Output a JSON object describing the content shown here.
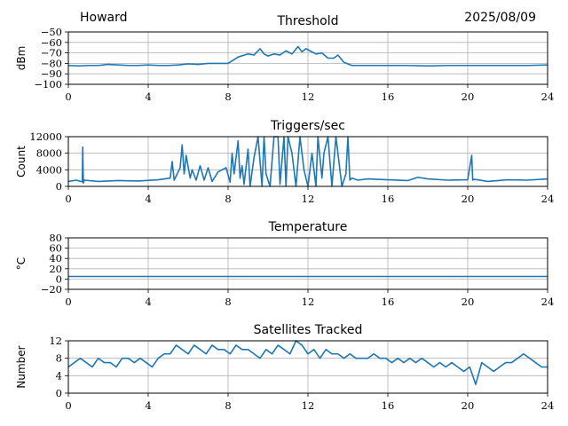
{
  "header": {
    "station": "Howard",
    "date": "2025/08/09"
  },
  "chart_data": [
    {
      "type": "line",
      "title": "Threshold",
      "ylabel": "dBm",
      "xlabel": "",
      "xlim": [
        0,
        24
      ],
      "ylim": [
        -100,
        -50
      ],
      "xticks": [
        0,
        4,
        8,
        12,
        16,
        20,
        24
      ],
      "yticks": [
        -100,
        -90,
        -80,
        -70,
        -60,
        -50
      ],
      "ytick_labels": [
        "−100",
        "−90",
        "−80",
        "−70",
        "−60",
        "−50"
      ],
      "grid": true,
      "color": "#1f77b4",
      "series": [
        {
          "x": [
            0,
            0.5,
            1,
            1.5,
            2,
            2.5,
            3,
            3.5,
            4,
            4.5,
            5,
            5.5,
            6,
            6.5,
            7,
            7.5,
            8,
            8.5,
            9,
            9.3,
            9.6,
            9.8,
            10,
            10.3,
            10.6,
            10.9,
            11.2,
            11.5,
            11.7,
            11.9,
            12.1,
            12.4,
            12.7,
            13,
            13.3,
            13.5,
            13.8,
            14.2,
            15,
            16,
            17,
            18,
            19,
            20,
            21,
            22,
            23,
            24
          ],
          "y": [
            -82,
            -82.5,
            -82,
            -82,
            -81,
            -81.5,
            -82,
            -82,
            -81.5,
            -82,
            -82,
            -81.5,
            -80.5,
            -81,
            -80,
            -80,
            -80,
            -74,
            -71,
            -72,
            -66,
            -71,
            -73,
            -71,
            -72,
            -68,
            -71,
            -64,
            -69,
            -66,
            -68,
            -71,
            -70,
            -75,
            -75,
            -72,
            -79,
            -82,
            -82,
            -82,
            -82,
            -82.5,
            -82,
            -82,
            -82,
            -82,
            -82,
            -81.5
          ]
        }
      ]
    },
    {
      "type": "line",
      "title": "Triggers/sec",
      "ylabel": "Count",
      "xlabel": "",
      "xlim": [
        0,
        24
      ],
      "ylim": [
        0,
        12000
      ],
      "xticks": [
        0,
        4,
        8,
        12,
        16,
        20,
        24
      ],
      "yticks": [
        0,
        4000,
        8000,
        12000
      ],
      "ytick_labels": [
        "0",
        "4000",
        "8000",
        "12000"
      ],
      "grid": true,
      "color": "#1f77b4",
      "series": [
        {
          "x": [
            0,
            0.4,
            0.7,
            0.72,
            0.75,
            0.8,
            1.5,
            2.5,
            3.5,
            4.5,
            5.1,
            5.2,
            5.3,
            5.6,
            5.7,
            5.8,
            5.9,
            6.1,
            6.2,
            6.4,
            6.6,
            6.8,
            7,
            7.2,
            7.5,
            7.9,
            8.1,
            8.2,
            8.3,
            8.5,
            8.6,
            8.7,
            8.8,
            9,
            9.1,
            9.3,
            9.5,
            9.7,
            9.8,
            9.9,
            10.1,
            10.3,
            10.5,
            10.6,
            10.8,
            10.9,
            11,
            11.2,
            11.4,
            11.6,
            11.8,
            12,
            12.2,
            12.4,
            12.5,
            12.7,
            12.8,
            13,
            13.2,
            13.4,
            13.6,
            13.7,
            13.9,
            14,
            14.1,
            14.2,
            14.5,
            15,
            16,
            17,
            17.5,
            18,
            19,
            20,
            20.2,
            20.25,
            20.3,
            20.5,
            21,
            22,
            23,
            24
          ],
          "y": [
            1200,
            1500,
            1100,
            9500,
            800,
            1500,
            1200,
            1400,
            1300,
            1600,
            2000,
            6000,
            1500,
            4500,
            10000,
            3000,
            7500,
            2000,
            4000,
            1500,
            5000,
            1500,
            4500,
            1200,
            3500,
            4500,
            1000,
            8000,
            3000,
            11000,
            2000,
            5000,
            500,
            9000,
            0,
            7000,
            12000,
            0,
            12000,
            3000,
            0,
            12000,
            12000,
            500,
            12000,
            0,
            12000,
            8000,
            0,
            12000,
            4000,
            0,
            8000,
            0,
            12000,
            2000,
            8000,
            12000,
            0,
            12000,
            4000,
            0,
            3000,
            12000,
            1500,
            2000,
            1500,
            1800,
            1600,
            1400,
            2200,
            1800,
            1500,
            1600,
            7500,
            1500,
            1700,
            1600,
            1200,
            1600,
            1500,
            1800
          ]
        }
      ]
    },
    {
      "type": "line",
      "title": "Temperature",
      "ylabel": "°C",
      "xlabel": "",
      "xlim": [
        0,
        24
      ],
      "ylim": [
        -20,
        80
      ],
      "xticks": [
        0,
        4,
        8,
        12,
        16,
        20,
        24
      ],
      "yticks": [
        -20,
        0,
        20,
        40,
        60,
        80
      ],
      "ytick_labels": [
        "−20",
        "0",
        "20",
        "40",
        "60",
        "80"
      ],
      "grid": true,
      "color": "#1f77b4",
      "series": [
        {
          "x": [
            0,
            24
          ],
          "y": [
            5,
            5
          ]
        }
      ]
    },
    {
      "type": "line",
      "title": "Satellites Tracked",
      "ylabel": "Number",
      "xlabel": "",
      "xlim": [
        0,
        24
      ],
      "ylim": [
        0,
        12
      ],
      "xticks": [
        0,
        4,
        8,
        12,
        16,
        20,
        24
      ],
      "yticks": [
        0,
        4,
        8,
        12
      ],
      "ytick_labels": [
        "0",
        "4",
        "8",
        "12"
      ],
      "grid": true,
      "color": "#1f77b4",
      "series": [
        {
          "x": [
            0,
            0.3,
            0.6,
            0.9,
            1.2,
            1.5,
            1.8,
            2.1,
            2.4,
            2.7,
            3,
            3.3,
            3.6,
            3.9,
            4.2,
            4.5,
            4.8,
            5.1,
            5.4,
            5.7,
            6,
            6.3,
            6.6,
            6.9,
            7.2,
            7.5,
            7.8,
            8.1,
            8.4,
            8.7,
            9,
            9.3,
            9.6,
            9.9,
            10.2,
            10.5,
            10.8,
            11.1,
            11.4,
            11.7,
            12,
            12.3,
            12.6,
            12.9,
            13.2,
            13.5,
            13.8,
            14.1,
            14.4,
            14.7,
            15,
            15.3,
            15.6,
            15.9,
            16.2,
            16.5,
            16.8,
            17.1,
            17.4,
            17.7,
            18,
            18.3,
            18.6,
            18.9,
            19.2,
            19.5,
            19.8,
            20.1,
            20.4,
            20.7,
            21,
            21.3,
            21.6,
            21.9,
            22.2,
            22.5,
            22.8,
            23.1,
            23.4,
            23.7,
            24
          ],
          "y": [
            6,
            7,
            8,
            7,
            6,
            8,
            7,
            7,
            6,
            8,
            8,
            7,
            8,
            7,
            6,
            8,
            9,
            9,
            11,
            10,
            9,
            11,
            10,
            9,
            11,
            10,
            10,
            9,
            11,
            10,
            10,
            9,
            8,
            10,
            9,
            11,
            10,
            9,
            12,
            11,
            9,
            10,
            8,
            10,
            9,
            9,
            8,
            9,
            8,
            8,
            8,
            9,
            8,
            8,
            7,
            8,
            7,
            8,
            7,
            8,
            7,
            6,
            7,
            6,
            7,
            6,
            5,
            6,
            2,
            7,
            6,
            5,
            6,
            7,
            7,
            8,
            9,
            8,
            7,
            6,
            6
          ]
        }
      ]
    }
  ]
}
